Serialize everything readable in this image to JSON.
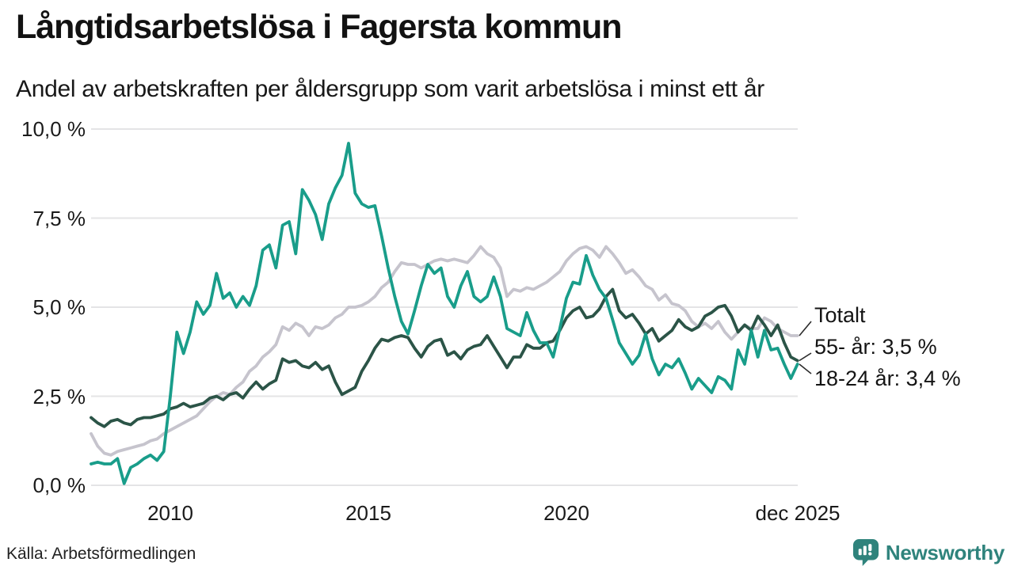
{
  "header": {
    "title": "Långtidsarbetslösa i Fagersta kommun",
    "subtitle": "Andel av arbetskraften per åldersgrupp som varit arbetslösa i minst ett år"
  },
  "footer": {
    "source": "Källa: Arbetsförmedlingen",
    "brand": {
      "name": "Newsworthy",
      "color": "#2f837c",
      "icon": "speech-bubble-bar-chart"
    }
  },
  "chart_data": {
    "type": "line",
    "title": "Långtidsarbetslösa i Fagersta kommun",
    "subtitle": "Andel av arbetskraften per åldersgrupp som varit arbetslösa i minst ett år",
    "x_start": 2008.0,
    "x_step_years": 0.1666667,
    "x_axis": {
      "range": [
        2008.0,
        2025.84
      ],
      "ticks": [
        {
          "value": 2010,
          "label": "2010"
        },
        {
          "value": 2015,
          "label": "2015"
        },
        {
          "value": 2020,
          "label": "2020"
        },
        {
          "value": 2025.84,
          "label": "dec 2025"
        }
      ]
    },
    "y_axis": {
      "range": [
        0,
        10
      ],
      "ticks": [
        {
          "value": 0,
          "label": "0,0 %"
        },
        {
          "value": 2.5,
          "label": "2,5 %"
        },
        {
          "value": 5,
          "label": "5,0 %"
        },
        {
          "value": 7.5,
          "label": "7,5 %"
        },
        {
          "value": 10,
          "label": "10,0 %"
        }
      ]
    },
    "grid_color": "#e4e4e6",
    "leader_color": "#2b2b2b",
    "series": [
      {
        "name": "Totalt",
        "color": "#c6c4cd",
        "end_label": "Totalt",
        "values": [
          1.45,
          1.1,
          0.9,
          0.85,
          0.95,
          1.0,
          1.05,
          1.1,
          1.15,
          1.25,
          1.3,
          1.45,
          1.55,
          1.65,
          1.75,
          1.85,
          1.95,
          2.15,
          2.35,
          2.5,
          2.6,
          2.55,
          2.75,
          2.9,
          3.2,
          3.35,
          3.6,
          3.75,
          3.95,
          4.45,
          4.35,
          4.55,
          4.45,
          4.2,
          4.45,
          4.4,
          4.5,
          4.7,
          4.8,
          5.0,
          5.0,
          5.05,
          5.15,
          5.3,
          5.55,
          5.7,
          6.0,
          6.25,
          6.2,
          6.2,
          6.1,
          6.2,
          6.3,
          6.35,
          6.3,
          6.35,
          6.3,
          6.25,
          6.45,
          6.7,
          6.5,
          6.4,
          6.1,
          5.3,
          5.5,
          5.45,
          5.55,
          5.5,
          5.6,
          5.7,
          5.85,
          6.0,
          6.3,
          6.5,
          6.65,
          6.7,
          6.6,
          6.4,
          6.7,
          6.5,
          6.25,
          5.95,
          6.05,
          5.85,
          5.6,
          5.5,
          5.2,
          5.35,
          5.1,
          5.05,
          4.9,
          4.6,
          4.45,
          4.55,
          4.4,
          4.6,
          4.3,
          4.1,
          4.3,
          4.5,
          4.4,
          4.4,
          4.7,
          4.6,
          4.4,
          4.3,
          4.2,
          4.2
        ]
      },
      {
        "name": "55- år",
        "color": "#2b5447",
        "end_label": "55- år: 3,5 %",
        "values": [
          1.9,
          1.75,
          1.65,
          1.8,
          1.85,
          1.75,
          1.7,
          1.85,
          1.9,
          1.9,
          1.95,
          2.0,
          2.15,
          2.2,
          2.3,
          2.2,
          2.25,
          2.3,
          2.45,
          2.5,
          2.4,
          2.55,
          2.6,
          2.45,
          2.7,
          2.9,
          2.7,
          2.85,
          2.95,
          3.55,
          3.45,
          3.5,
          3.35,
          3.3,
          3.45,
          3.25,
          3.35,
          2.9,
          2.55,
          2.65,
          2.75,
          3.2,
          3.5,
          3.85,
          4.1,
          4.05,
          4.15,
          4.2,
          4.15,
          3.85,
          3.6,
          3.9,
          4.05,
          4.1,
          3.65,
          3.75,
          3.55,
          3.8,
          3.9,
          3.95,
          4.2,
          3.9,
          3.6,
          3.3,
          3.6,
          3.6,
          3.95,
          3.85,
          3.85,
          4.0,
          4.05,
          4.35,
          4.7,
          4.9,
          5.0,
          4.7,
          4.75,
          4.95,
          5.3,
          5.5,
          4.9,
          4.7,
          4.8,
          4.55,
          4.25,
          4.4,
          4.05,
          4.2,
          4.35,
          4.65,
          4.45,
          4.35,
          4.45,
          4.75,
          4.85,
          5.0,
          5.05,
          4.75,
          4.3,
          4.5,
          4.35,
          4.75,
          4.5,
          4.2,
          4.5,
          4.0,
          3.6,
          3.5
        ]
      },
      {
        "name": "18-24 år",
        "color": "#199d8a",
        "end_label": "18-24 år: 3,4 %",
        "values": [
          0.6,
          0.65,
          0.6,
          0.6,
          0.75,
          0.05,
          0.5,
          0.6,
          0.75,
          0.85,
          0.7,
          0.95,
          2.5,
          4.3,
          3.7,
          4.3,
          5.15,
          4.8,
          5.05,
          5.95,
          5.25,
          5.4,
          5.0,
          5.3,
          5.05,
          5.6,
          6.6,
          6.75,
          6.1,
          7.3,
          7.4,
          6.5,
          8.3,
          8.0,
          7.6,
          6.9,
          7.9,
          8.35,
          8.7,
          9.6,
          8.2,
          7.9,
          7.8,
          7.85,
          7.0,
          6.1,
          5.3,
          4.6,
          4.25,
          4.9,
          5.6,
          6.2,
          5.95,
          6.1,
          5.3,
          5.0,
          5.6,
          6.0,
          5.3,
          5.15,
          5.3,
          5.85,
          5.3,
          4.4,
          4.3,
          4.2,
          4.85,
          4.35,
          4.0,
          4.0,
          3.6,
          4.4,
          5.25,
          5.7,
          5.65,
          6.45,
          5.9,
          5.5,
          5.25,
          4.65,
          4.0,
          3.7,
          3.4,
          3.65,
          4.25,
          3.55,
          3.1,
          3.4,
          3.3,
          3.55,
          3.15,
          2.7,
          3.0,
          2.8,
          2.6,
          3.05,
          2.95,
          2.7,
          3.8,
          3.4,
          4.35,
          3.6,
          4.35,
          3.8,
          3.85,
          3.4,
          3.0,
          3.4
        ]
      }
    ]
  }
}
